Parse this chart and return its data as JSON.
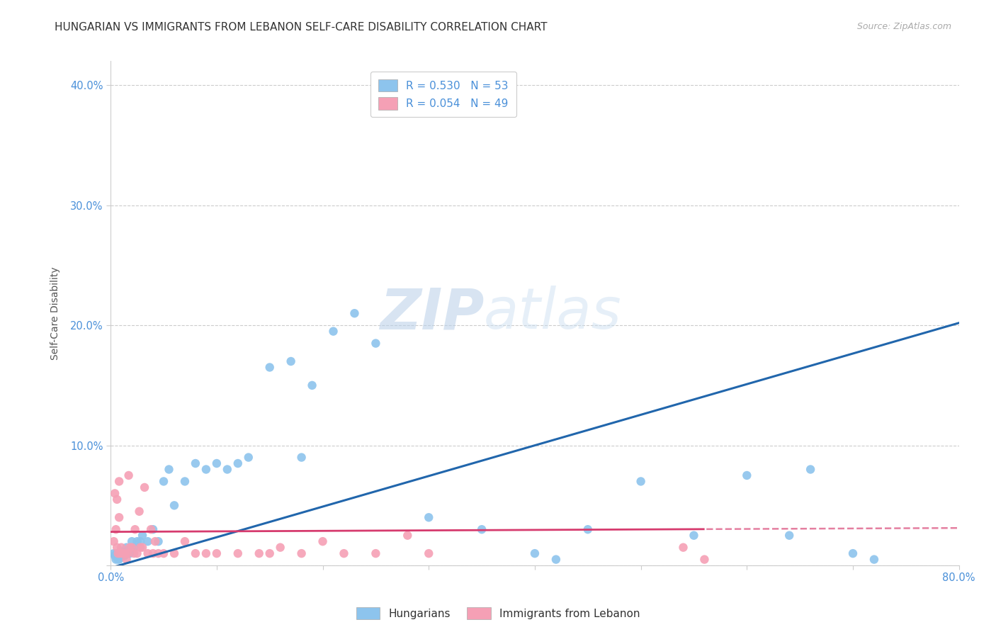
{
  "title": "HUNGARIAN VS IMMIGRANTS FROM LEBANON SELF-CARE DISABILITY CORRELATION CHART",
  "source": "Source: ZipAtlas.com",
  "ylabel": "Self-Care Disability",
  "xlim": [
    0.0,
    0.8
  ],
  "ylim": [
    0.0,
    0.42
  ],
  "xticks": [
    0.0,
    0.1,
    0.2,
    0.3,
    0.4,
    0.5,
    0.6,
    0.7,
    0.8
  ],
  "yticks": [
    0.0,
    0.1,
    0.2,
    0.3,
    0.4
  ],
  "ytick_labels": [
    "",
    "10.0%",
    "20.0%",
    "30.0%",
    "40.0%"
  ],
  "xtick_labels": [
    "0.0%",
    "",
    "",
    "",
    "",
    "",
    "",
    "",
    "80.0%"
  ],
  "hungarian_color": "#8dc4ed",
  "lebanon_color": "#f5a0b5",
  "hungarian_line_color": "#2166ac",
  "lebanon_line_color": "#d63b6e",
  "legend1_R": "0.530",
  "legend1_N": "53",
  "legend2_R": "0.054",
  "legend2_N": "49",
  "watermark_1": "ZIP",
  "watermark_2": "atlas",
  "hungarian_x": [
    0.003,
    0.004,
    0.005,
    0.006,
    0.007,
    0.008,
    0.009,
    0.01,
    0.011,
    0.012,
    0.013,
    0.014,
    0.015,
    0.016,
    0.017,
    0.018,
    0.02,
    0.022,
    0.025,
    0.028,
    0.03,
    0.035,
    0.04,
    0.045,
    0.05,
    0.055,
    0.06,
    0.07,
    0.08,
    0.09,
    0.1,
    0.11,
    0.12,
    0.13,
    0.15,
    0.17,
    0.19,
    0.21,
    0.23,
    0.25,
    0.3,
    0.35,
    0.4,
    0.45,
    0.5,
    0.55,
    0.6,
    0.64,
    0.66,
    0.7,
    0.72,
    0.18,
    0.42
  ],
  "hungarian_y": [
    0.01,
    0.008,
    0.005,
    0.01,
    0.005,
    0.005,
    0.008,
    0.012,
    0.01,
    0.01,
    0.008,
    0.01,
    0.015,
    0.012,
    0.01,
    0.01,
    0.02,
    0.015,
    0.02,
    0.02,
    0.025,
    0.02,
    0.03,
    0.02,
    0.07,
    0.08,
    0.05,
    0.07,
    0.085,
    0.08,
    0.085,
    0.08,
    0.085,
    0.09,
    0.165,
    0.17,
    0.15,
    0.195,
    0.21,
    0.185,
    0.04,
    0.03,
    0.01,
    0.03,
    0.07,
    0.025,
    0.075,
    0.025,
    0.08,
    0.01,
    0.005,
    0.09,
    0.005
  ],
  "lebanon_x": [
    0.003,
    0.005,
    0.006,
    0.007,
    0.008,
    0.009,
    0.01,
    0.011,
    0.012,
    0.013,
    0.014,
    0.015,
    0.016,
    0.018,
    0.02,
    0.022,
    0.025,
    0.028,
    0.03,
    0.035,
    0.04,
    0.045,
    0.05,
    0.06,
    0.07,
    0.08,
    0.09,
    0.1,
    0.12,
    0.14,
    0.16,
    0.18,
    0.2,
    0.22,
    0.25,
    0.28,
    0.3,
    0.15,
    0.004,
    0.006,
    0.008,
    0.017,
    0.023,
    0.027,
    0.032,
    0.038,
    0.042,
    0.54,
    0.56
  ],
  "lebanon_y": [
    0.02,
    0.03,
    0.015,
    0.01,
    0.04,
    0.01,
    0.015,
    0.01,
    0.01,
    0.01,
    0.01,
    0.005,
    0.01,
    0.015,
    0.015,
    0.01,
    0.01,
    0.015,
    0.015,
    0.01,
    0.01,
    0.01,
    0.01,
    0.01,
    0.02,
    0.01,
    0.01,
    0.01,
    0.01,
    0.01,
    0.015,
    0.01,
    0.02,
    0.01,
    0.01,
    0.025,
    0.01,
    0.01,
    0.06,
    0.055,
    0.07,
    0.075,
    0.03,
    0.045,
    0.065,
    0.03,
    0.02,
    0.015,
    0.005
  ],
  "background_color": "#ffffff",
  "grid_color": "#cccccc",
  "axis_color": "#4a90d9",
  "title_fontsize": 11,
  "label_fontsize": 10,
  "tick_fontsize": 10.5,
  "marker_size": 80
}
